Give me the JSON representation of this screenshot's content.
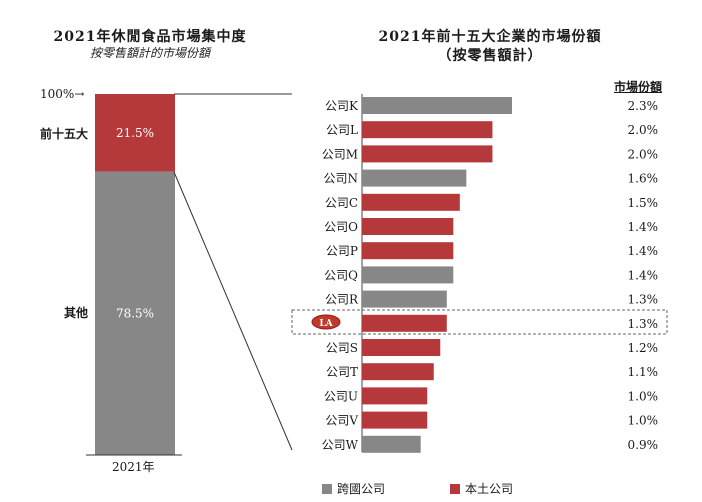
{
  "left_chart": {
    "title": "2021年休閒食品市場集中度",
    "subtitle": "按零售額計的市場份額",
    "top_marker": "100%",
    "x_label": "2021年",
    "segments": [
      {
        "label": "前十五大",
        "value_label": "21.5%",
        "value": 21.5,
        "color": "#b5393b"
      },
      {
        "label": "其他",
        "value_label": "78.5%",
        "value": 78.5,
        "color": "#878787"
      }
    ]
  },
  "right_chart": {
    "title_line1": "2021年前十五大企業的市場份額",
    "title_line2": "（按零售額計）",
    "share_header": "市場份額"
  },
  "legend": {
    "cross_label": "跨國公司",
    "local_label": "本土公司"
  },
  "colors": {
    "cross": "#878787",
    "local": "#b5393b"
  },
  "chart_data": [
    {
      "type": "bar",
      "title": "2021年休閒食品市場集中度",
      "subtitle": "按零售額計的市場份額",
      "categories": [
        "2021年"
      ],
      "series": [
        {
          "name": "前十五大",
          "values": [
            21.5
          ]
        },
        {
          "name": "其他",
          "values": [
            78.5
          ]
        }
      ],
      "ylim": [
        0,
        100
      ],
      "stacked": true
    },
    {
      "type": "bar",
      "orientation": "horizontal",
      "title": "2021年前十五大企業的市場份額（按零售額計）",
      "categories": [
        "公司K",
        "公司L",
        "公司M",
        "公司N",
        "公司C",
        "公司O",
        "公司P",
        "公司Q",
        "公司R",
        "",
        "公司S",
        "公司T",
        "公司U",
        "公司V",
        "公司W"
      ],
      "values": [
        2.3,
        2.0,
        2.0,
        1.6,
        1.5,
        1.4,
        1.4,
        1.4,
        1.3,
        1.3,
        1.2,
        1.1,
        1.0,
        1.0,
        0.9
      ],
      "value_labels": [
        "2.3%",
        "2.0%",
        "2.0%",
        "1.6%",
        "1.5%",
        "1.4%",
        "1.4%",
        "1.4%",
        "1.3%",
        "1.3%",
        "1.2%",
        "1.1%",
        "1.0%",
        "1.0%",
        "0.9%"
      ],
      "types": [
        "cross",
        "local",
        "local",
        "cross",
        "local",
        "local",
        "local",
        "cross",
        "cross",
        "local",
        "local",
        "local",
        "local",
        "local",
        "cross"
      ],
      "highlight_index": 9,
      "logo_text": "LA",
      "legend": [
        "跨國公司",
        "本土公司"
      ],
      "legend_position": "bottom"
    }
  ]
}
